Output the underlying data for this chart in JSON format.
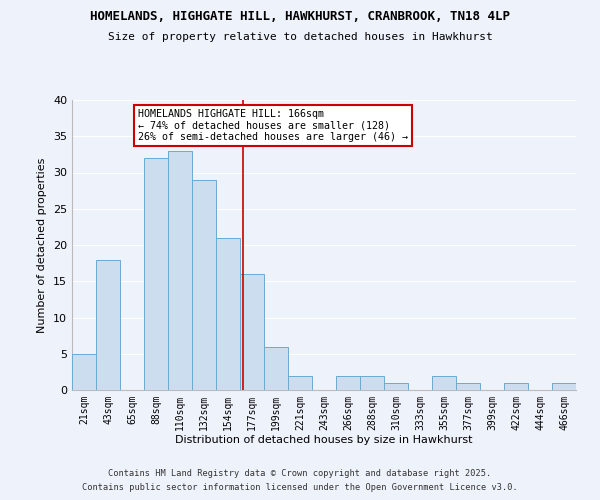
{
  "title1": "HOMELANDS, HIGHGATE HILL, HAWKHURST, CRANBROOK, TN18 4LP",
  "title2": "Size of property relative to detached houses in Hawkhurst",
  "xlabel": "Distribution of detached houses by size in Hawkhurst",
  "ylabel": "Number of detached properties",
  "categories": [
    "21sqm",
    "43sqm",
    "65sqm",
    "88sqm",
    "110sqm",
    "132sqm",
    "154sqm",
    "177sqm",
    "199sqm",
    "221sqm",
    "243sqm",
    "266sqm",
    "288sqm",
    "310sqm",
    "333sqm",
    "355sqm",
    "377sqm",
    "399sqm",
    "422sqm",
    "444sqm",
    "466sqm"
  ],
  "values": [
    5,
    18,
    0,
    32,
    33,
    29,
    21,
    16,
    6,
    2,
    0,
    2,
    2,
    1,
    0,
    2,
    1,
    0,
    1,
    0,
    1
  ],
  "bar_color": "#ccddf0",
  "bar_edge_color": "#6aaad4",
  "vline_x_index": 6.62,
  "vline_color": "#cc0000",
  "annotation_title": "HOMELANDS HIGHGATE HILL: 166sqm",
  "annotation_line1": "← 74% of detached houses are smaller (128)",
  "annotation_line2": "26% of semi-detached houses are larger (46) →",
  "annotation_box_color": "#ffffff",
  "annotation_box_edge": "#cc0000",
  "footer1": "Contains HM Land Registry data © Crown copyright and database right 2025.",
  "footer2": "Contains public sector information licensed under the Open Government Licence v3.0.",
  "background_color": "#eef2fb",
  "grid_color": "#ffffff",
  "ylim": [
    0,
    40
  ],
  "yticks": [
    0,
    5,
    10,
    15,
    20,
    25,
    30,
    35,
    40
  ]
}
